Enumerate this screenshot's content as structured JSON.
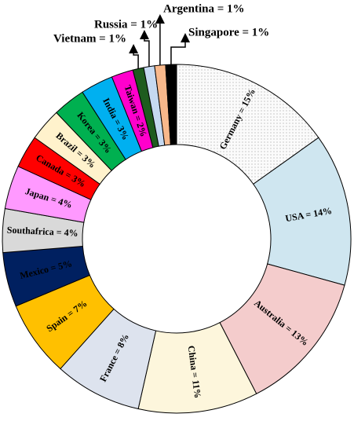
{
  "chart_data": {
    "type": "donut",
    "value_labels": [
      "Germany = 15%",
      "USA = 14%",
      "Australia = 13%",
      "China = 11%",
      "France = 8%",
      "Spain = 7%",
      "Mexico = 5%",
      "Southafrica = 4%",
      "Japan = 4%",
      "Canada = 3%",
      "Brazil = 3%",
      "Korea = 3%",
      "India = 3%",
      "Taiwan = 2%",
      "Vietnam = 1%",
      "Russia = 1%",
      "Argentina = 1%",
      "Singapore = 1%"
    ],
    "values": [
      15,
      14,
      13,
      11,
      8,
      7,
      5,
      4,
      4,
      3,
      3,
      3,
      3,
      2,
      1,
      1,
      1,
      1
    ],
    "colors": [
      "#fbfbfb",
      "#cfe6f0",
      "#f4cccc",
      "#fdf6dc",
      "#dde3ee",
      "#ffc000",
      "#002060",
      "#d9d9d9",
      "#ff99ff",
      "#ff0000",
      "#fff2cc",
      "#00b050",
      "#00b0f0",
      "#ff00cc",
      "#1e5c1e",
      "#c5d9f1",
      "#f8b88b",
      "#000000"
    ]
  }
}
